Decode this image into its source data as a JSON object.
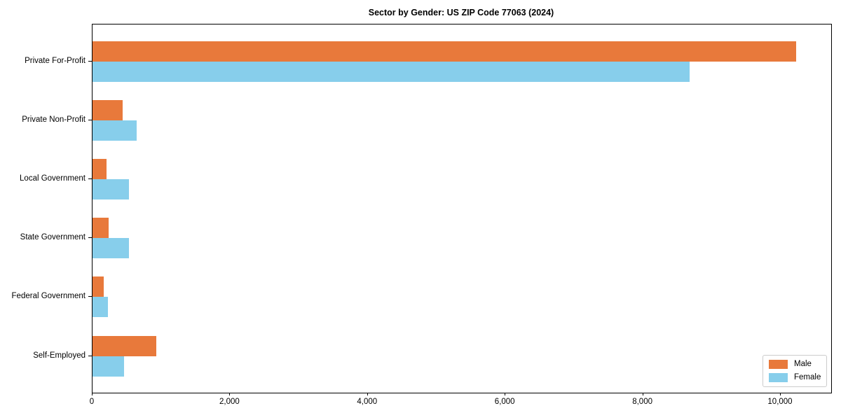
{
  "chart_data": {
    "type": "bar",
    "orientation": "horizontal",
    "title": "Sector by Gender: US ZIP Code 77063 (2024)",
    "categories": [
      "Private For-Profit",
      "Private Non-Profit",
      "Local Government",
      "State Government",
      "Federal Government",
      "Self-Employed"
    ],
    "series": [
      {
        "name": "Male",
        "color": "#E8793B",
        "values": [
          10220,
          440,
          200,
          230,
          160,
          930
        ]
      },
      {
        "name": "Female",
        "color": "#87CEEB",
        "values": [
          8680,
          640,
          530,
          530,
          220,
          460
        ]
      }
    ],
    "xlim": [
      0,
      10730
    ],
    "x_ticks": [
      {
        "value": 0,
        "label": "0"
      },
      {
        "value": 2000,
        "label": "2,000"
      },
      {
        "value": 4000,
        "label": "4,000"
      },
      {
        "value": 6000,
        "label": "6,000"
      },
      {
        "value": 8000,
        "label": "8,000"
      },
      {
        "value": 10000,
        "label": "10,000"
      }
    ],
    "grid": false,
    "legend": {
      "position": "lower right"
    }
  }
}
